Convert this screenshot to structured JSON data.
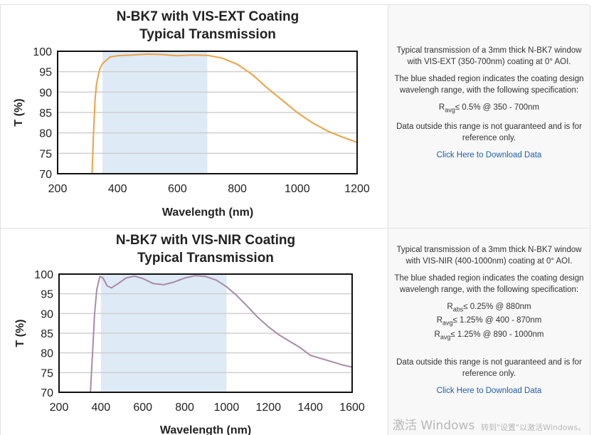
{
  "chart_data": [
    {
      "type": "line",
      "title": [
        "N-BK7 with VIS-EXT Coating",
        "Typical Transmission"
      ],
      "xlabel": "Wavelength (nm)",
      "ylabel": "T (%)",
      "xlim": [
        200,
        1200
      ],
      "ylim": [
        70,
        100
      ],
      "xticks": [
        "200",
        "400",
        "600",
        "800",
        "1000",
        "1200"
      ],
      "yticks": [
        "70",
        "75",
        "80",
        "85",
        "90",
        "95",
        "100"
      ],
      "grid": "horizontal",
      "shaded_region": [
        350,
        700
      ],
      "shade_color": "#deeaf5",
      "series": [
        {
          "color": "#f0a040",
          "x": [
            315,
            320,
            325,
            330,
            340,
            350,
            375,
            400,
            450,
            500,
            550,
            600,
            650,
            700,
            750,
            800,
            850,
            900,
            950,
            1000,
            1050,
            1100,
            1150,
            1200
          ],
          "y": [
            70,
            80,
            88,
            92,
            95.5,
            97,
            98.6,
            98.9,
            99.1,
            99.3,
            99.2,
            98.9,
            99.1,
            99.0,
            98.3,
            96.8,
            94.3,
            91.0,
            88.0,
            85.0,
            82.5,
            80.5,
            79.0,
            77.7
          ]
        }
      ]
    },
    {
      "type": "line",
      "title": [
        "N-BK7 with VIS-NIR Coating",
        "Typical Transmission"
      ],
      "xlabel": "Wavelength (nm)",
      "ylabel": "T (%)",
      "xlim": [
        200,
        1600
      ],
      "ylim": [
        70,
        100
      ],
      "xticks": [
        "200",
        "400",
        "600",
        "800",
        "1000",
        "1200",
        "1400",
        "1600"
      ],
      "yticks": [
        "70",
        "75",
        "80",
        "85",
        "90",
        "95",
        "100"
      ],
      "grid": "horizontal",
      "shaded_region": [
        400,
        1000
      ],
      "shade_color": "#deeaf5",
      "series": [
        {
          "color": "#a88aaa",
          "x": [
            350,
            360,
            370,
            380,
            395,
            410,
            430,
            450,
            480,
            520,
            560,
            600,
            650,
            700,
            750,
            800,
            850,
            900,
            950,
            1000,
            1050,
            1100,
            1150,
            1200,
            1250,
            1300,
            1350,
            1400,
            1450,
            1500,
            1550,
            1600
          ],
          "y": [
            70,
            80,
            90,
            96,
            99.4,
            99.0,
            97.0,
            96.5,
            97.5,
            99.0,
            99.5,
            98.9,
            97.6,
            97.3,
            98.0,
            99.0,
            99.6,
            99.4,
            98.5,
            96.8,
            94.5,
            91.8,
            89.0,
            86.6,
            84.6,
            83.0,
            81.4,
            79.4,
            78.6,
            77.8,
            77.0,
            76.4
          ]
        }
      ]
    }
  ],
  "descriptions": [
    {
      "intro": "Typical transmission of a 3mm thick N-BK7 window with VIS-EXT (350-700nm) coating at 0° AOI.",
      "shade_note": "The blue shaded region indicates the coating design wavelengh range, with the following specification:",
      "specs": [
        {
          "symbol": "R",
          "sub": "avg",
          "text": "≤ 0.5% @ 350 - 700nm"
        }
      ],
      "disclaimer": "Data outside this range is not guaranteed and is for reference only.",
      "download_link": "Click Here to Download Data"
    },
    {
      "intro": "Typical transmission of a 3mm thick N-BK7 window with VIS-NIR (400-1000nm) coating at 0° AOI.",
      "shade_note": "The blue shaded region indicates the coating design wavelengh range, with the following specification:",
      "specs": [
        {
          "symbol": "R",
          "sub": "abs",
          "text": "≤ 0.25% @ 880nm"
        },
        {
          "symbol": "R",
          "sub": "avg",
          "text": "≤ 1.25% @ 400 - 870nm"
        },
        {
          "symbol": "R",
          "sub": "avg",
          "text": "≤ 1.25% @ 890 - 1000nm"
        }
      ],
      "disclaimer": "Data outside this range is not guaranteed and is for reference only.",
      "download_link": "Click Here to Download Data"
    }
  ],
  "watermark": {
    "line1": "激活 Windows",
    "line2": "转到\"设置\"以激活Windows。"
  }
}
